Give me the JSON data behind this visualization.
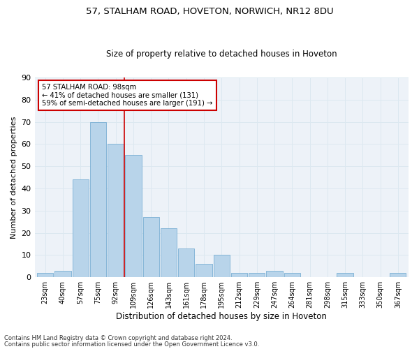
{
  "title1": "57, STALHAM ROAD, HOVETON, NORWICH, NR12 8DU",
  "title2": "Size of property relative to detached houses in Hoveton",
  "xlabel": "Distribution of detached houses by size in Hoveton",
  "ylabel": "Number of detached properties",
  "footer1": "Contains HM Land Registry data © Crown copyright and database right 2024.",
  "footer2": "Contains public sector information licensed under the Open Government Licence v3.0.",
  "bin_labels": [
    "23sqm",
    "40sqm",
    "57sqm",
    "75sqm",
    "92sqm",
    "109sqm",
    "126sqm",
    "143sqm",
    "161sqm",
    "178sqm",
    "195sqm",
    "212sqm",
    "229sqm",
    "247sqm",
    "264sqm",
    "281sqm",
    "298sqm",
    "315sqm",
    "333sqm",
    "350sqm",
    "367sqm"
  ],
  "bar_values": [
    2,
    3,
    44,
    70,
    60,
    55,
    27,
    22,
    13,
    6,
    10,
    2,
    2,
    3,
    2,
    0,
    0,
    2,
    0,
    0,
    2
  ],
  "bar_color": "#b8d4ea",
  "bar_edge_color": "#7aafd4",
  "vline_color": "#cc0000",
  "vline_x": 4.5,
  "annotation_text": "57 STALHAM ROAD: 98sqm\n← 41% of detached houses are smaller (131)\n59% of semi-detached houses are larger (191) →",
  "annotation_box_color": "#ffffff",
  "annotation_border_color": "#cc0000",
  "ylim": [
    0,
    90
  ],
  "yticks": [
    0,
    10,
    20,
    30,
    40,
    50,
    60,
    70,
    80,
    90
  ],
  "grid_color": "#dce8f0",
  "background_color": "#edf2f8"
}
